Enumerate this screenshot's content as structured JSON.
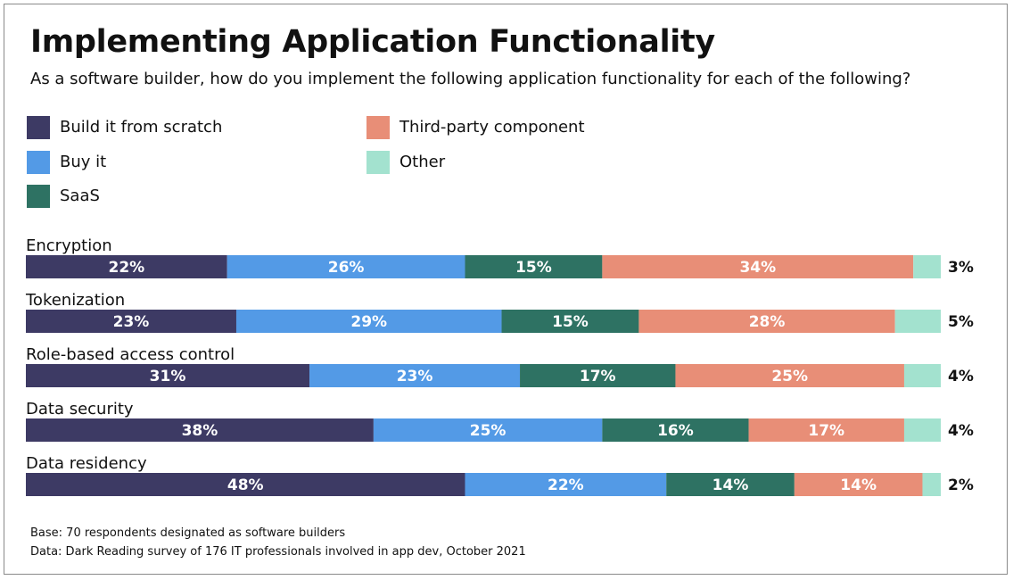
{
  "chart_data": {
    "type": "bar",
    "orientation": "horizontal",
    "stacked": true,
    "title": "Implementing Application Functionality",
    "subtitle": "As a software builder, how do you implement the following application functionality for each of the following?",
    "categories": [
      "Encryption",
      "Tokenization",
      "Role-based access control",
      "Data security",
      "Data residency"
    ],
    "series": [
      {
        "name": "Build it from scratch",
        "color": "#3d3a64",
        "values": [
          22,
          23,
          31,
          38,
          48
        ]
      },
      {
        "name": "Buy it",
        "color": "#539ae6",
        "values": [
          26,
          29,
          23,
          25,
          22
        ]
      },
      {
        "name": "SaaS",
        "color": "#2e7263",
        "values": [
          15,
          15,
          17,
          16,
          14
        ]
      },
      {
        "name": "Third-party component",
        "color": "#e88e77",
        "values": [
          34,
          28,
          25,
          17,
          14
        ]
      },
      {
        "name": "Other",
        "color": "#a3e2cf",
        "values": [
          3,
          5,
          4,
          4,
          2
        ]
      }
    ],
    "value_suffix": "%",
    "legend_position": "top-left",
    "grid": false
  },
  "footnotes": {
    "base": "Base: 70 respondents designated as software builders",
    "data": "Data: Dark Reading survey of 176 IT professionals involved in app dev, October 2021"
  }
}
